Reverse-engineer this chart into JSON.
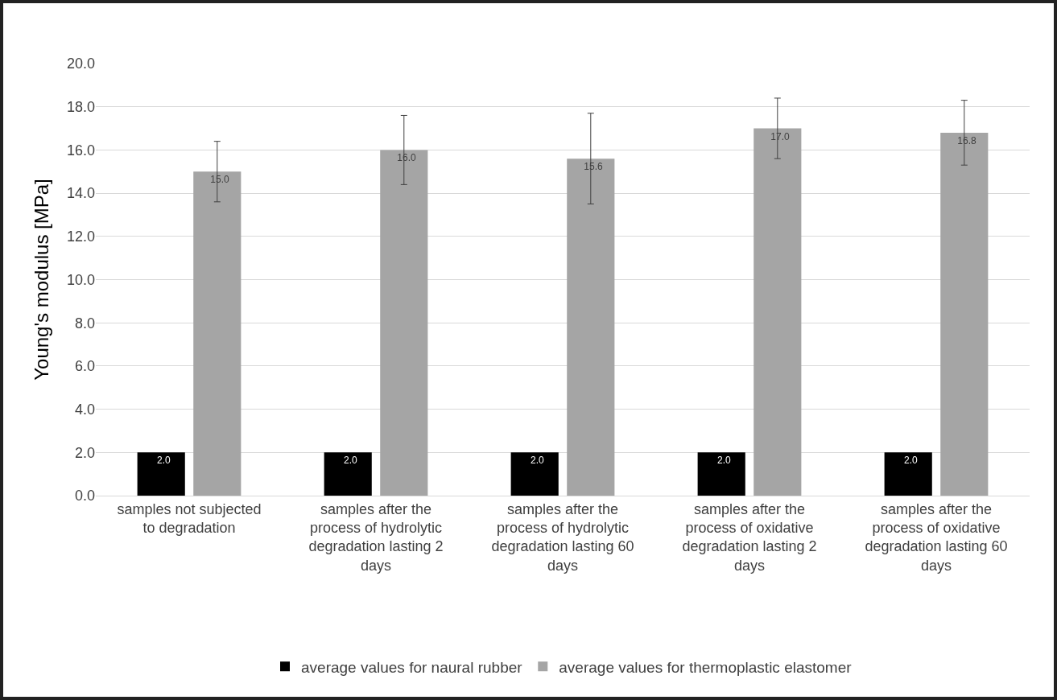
{
  "chart_data": {
    "type": "bar",
    "ylabel": "Young's modulus [MPa]",
    "categories": [
      "samples not subjected to degradation",
      "samples after the process of hydrolytic degradation lasting 2 days",
      "samples after the process of hydrolytic degradation lasting 60 days",
      "samples after the process of oxidative degradation lasting 2 days",
      "samples after the process of oxidative degradation lasting 60 days"
    ],
    "series": [
      {
        "name": "average values for naural rubber",
        "color": "#000000",
        "values": [
          2.0,
          2.0,
          2.0,
          2.0,
          2.0
        ],
        "value_labels": [
          "2.0",
          "2.0",
          "2.0",
          "2.0",
          "2.0"
        ]
      },
      {
        "name": "average values for thermoplastic elastomer",
        "color": "#a5a5a5",
        "values": [
          15.0,
          16.0,
          15.6,
          17.0,
          16.8
        ],
        "value_labels": [
          "15.0",
          "16.0",
          "15.6",
          "17.0",
          "16.8"
        ],
        "errors": [
          1.4,
          1.6,
          2.1,
          1.4,
          1.5
        ]
      }
    ],
    "ylim": [
      0,
      20
    ],
    "yticks": [
      {
        "value": 0,
        "label": "0.0"
      },
      {
        "value": 2,
        "label": "2.0"
      },
      {
        "value": 4,
        "label": "4.0"
      },
      {
        "value": 6,
        "label": "6.0"
      },
      {
        "value": 8,
        "label": "8.0"
      },
      {
        "value": 10,
        "label": "10.0"
      },
      {
        "value": 12,
        "label": "12.0"
      },
      {
        "value": 14,
        "label": "14.0"
      },
      {
        "value": 16,
        "label": "16.0"
      },
      {
        "value": 18,
        "label": "18.0"
      },
      {
        "value": 20,
        "label": "20.0"
      }
    ],
    "grid": "y",
    "legend": "bottom"
  }
}
